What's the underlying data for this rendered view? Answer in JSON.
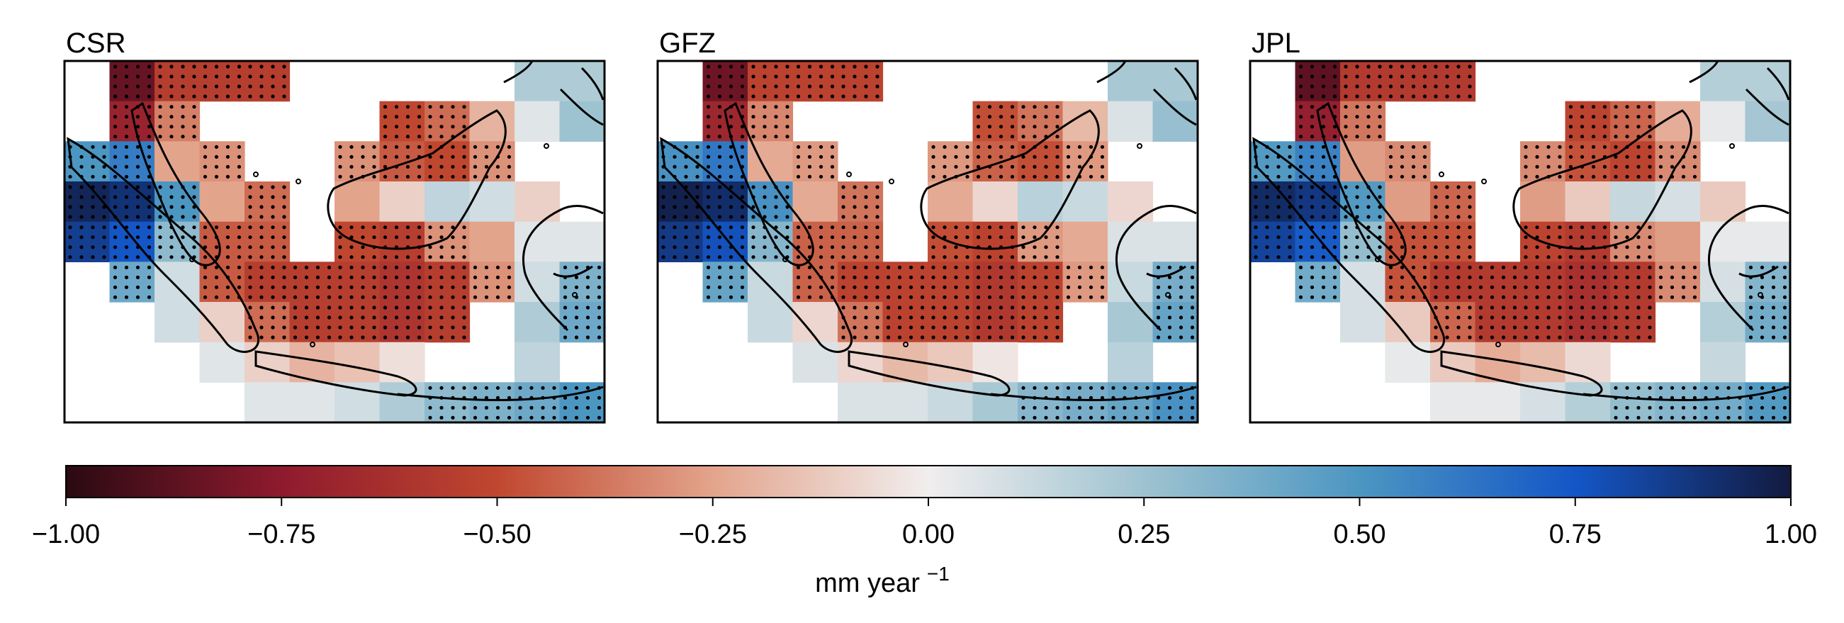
{
  "panels": [
    {
      "id": "csr",
      "title": "CSR"
    },
    {
      "id": "gfz",
      "title": "GFZ"
    },
    {
      "id": "jpl",
      "title": "JPL"
    }
  ],
  "colorbar": {
    "min": -1.0,
    "max": 1.0,
    "ticks": [
      "−1.00",
      "−0.75",
      "−0.50",
      "−0.25",
      "0.00",
      "0.25",
      "0.50",
      "0.75",
      "1.00"
    ],
    "label_main": "mm year",
    "label_sup": "−1",
    "colors": [
      "#2a0a12",
      "#8e1a2e",
      "#c0472f",
      "#e3a48c",
      "#f1eeee",
      "#9ec3d0",
      "#4c96c2",
      "#1456c6",
      "#131a3f"
    ]
  },
  "grid": {
    "rows": 9,
    "cols": 12,
    "description": "gridded trend values (mm/year); null = no data (white)",
    "values": [
      [
        null,
        -0.85,
        -0.55,
        -0.55,
        -0.55,
        null,
        null,
        null,
        null,
        null,
        0.2,
        0.2
      ],
      [
        null,
        -0.7,
        -0.35,
        null,
        null,
        null,
        null,
        -0.5,
        -0.4,
        -0.2,
        0.05,
        0.25
      ],
      [
        0.5,
        0.6,
        -0.25,
        -0.3,
        null,
        null,
        -0.3,
        -0.45,
        -0.5,
        -0.3,
        null,
        null
      ],
      [
        0.95,
        0.9,
        0.5,
        -0.25,
        -0.4,
        null,
        -0.25,
        -0.1,
        0.15,
        0.1,
        -0.1,
        null
      ],
      [
        0.85,
        0.75,
        0.3,
        -0.45,
        -0.45,
        null,
        -0.5,
        -0.55,
        -0.3,
        -0.25,
        0.05,
        0.05
      ],
      [
        null,
        0.4,
        0.1,
        -0.45,
        -0.55,
        -0.55,
        -0.55,
        -0.6,
        -0.55,
        -0.3,
        0.1,
        0.35
      ],
      [
        null,
        null,
        0.1,
        -0.1,
        -0.4,
        -0.55,
        -0.55,
        -0.6,
        -0.55,
        null,
        0.2,
        0.4
      ],
      [
        null,
        null,
        null,
        0.05,
        -0.1,
        -0.2,
        -0.15,
        -0.05,
        null,
        null,
        0.15,
        null
      ],
      [
        null,
        null,
        null,
        null,
        0.05,
        0.05,
        0.1,
        0.2,
        0.3,
        0.35,
        0.4,
        0.5
      ]
    ]
  }
}
